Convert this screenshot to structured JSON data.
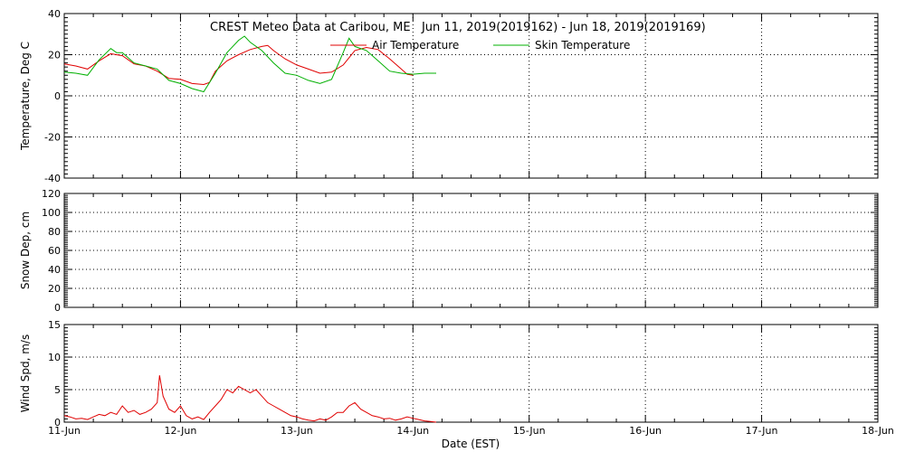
{
  "title": "CREST Meteo Data at Caribou, ME   Jun 11, 2019(2019162) - Jun 18, 2019(2019169)",
  "xlabel": "Date (EST)",
  "x_ticks": [
    "11-Jun",
    "12-Jun",
    "13-Jun",
    "14-Jun",
    "15-Jun",
    "16-Jun",
    "17-Jun",
    "18-Jun"
  ],
  "colors": {
    "air": "#e00000",
    "skin": "#00b000",
    "wind": "#e00000",
    "axis": "#000000"
  },
  "chart_data": [
    {
      "type": "line",
      "ylabel": "Temperature, Deg C",
      "xlim": [
        0,
        7
      ],
      "ylim": [
        -40,
        40
      ],
      "yticks": [
        -40,
        -20,
        0,
        20,
        40
      ],
      "x_unit": "days since 11-Jun 00:00",
      "legend": "top-center",
      "grid": true,
      "series": [
        {
          "name": "Air Temperature",
          "color": "#e00000",
          "x": [
            0.0,
            0.1,
            0.2,
            0.3,
            0.4,
            0.5,
            0.6,
            0.7,
            0.8,
            0.9,
            1.0,
            1.1,
            1.2,
            1.25,
            1.3,
            1.4,
            1.5,
            1.6,
            1.7,
            1.75,
            1.8,
            1.9,
            2.0,
            2.1,
            2.2,
            2.3,
            2.4,
            2.5,
            2.6,
            2.7,
            2.8,
            2.9,
            2.95,
            3.0
          ],
          "y": [
            15.5,
            14.5,
            13,
            17,
            20.5,
            19.5,
            15.5,
            14.5,
            12,
            8.5,
            8,
            6,
            5.5,
            6.5,
            12,
            17,
            20,
            22.5,
            24,
            24.5,
            22,
            18,
            15,
            13,
            11,
            11.5,
            15,
            22,
            23.5,
            22.5,
            18,
            13,
            10.5,
            10
          ]
        },
        {
          "name": "Skin Temperature",
          "color": "#00b000",
          "x": [
            0.0,
            0.1,
            0.2,
            0.3,
            0.4,
            0.45,
            0.5,
            0.6,
            0.7,
            0.8,
            0.9,
            1.0,
            1.1,
            1.2,
            1.3,
            1.4,
            1.5,
            1.55,
            1.6,
            1.7,
            1.8,
            1.9,
            2.0,
            2.1,
            2.2,
            2.3,
            2.4,
            2.45,
            2.5,
            2.6,
            2.7,
            2.8,
            2.9,
            3.0,
            3.1,
            3.2
          ],
          "y": [
            11.5,
            11,
            10,
            17.5,
            23,
            21,
            21,
            16,
            14.5,
            13,
            7.5,
            6,
            3.5,
            2,
            11,
            21,
            27,
            29,
            26,
            22,
            16,
            11,
            10,
            7.5,
            6,
            8,
            21,
            28,
            24,
            22,
            17,
            12,
            11,
            10.5,
            11,
            11
          ]
        }
      ]
    },
    {
      "type": "line",
      "ylabel": "Snow Dep, cm",
      "xlim": [
        0,
        7
      ],
      "ylim": [
        0,
        120
      ],
      "yticks": [
        0,
        20,
        40,
        60,
        80,
        100,
        120
      ],
      "grid": true,
      "series": []
    },
    {
      "type": "line",
      "ylabel": "Wind Spd, m/s",
      "xlim": [
        0,
        7
      ],
      "ylim": [
        0,
        15
      ],
      "yticks": [
        0,
        5,
        10,
        15
      ],
      "grid": true,
      "series": [
        {
          "name": "Wind Speed",
          "color": "#e00000",
          "x": [
            0.0,
            0.05,
            0.1,
            0.15,
            0.2,
            0.25,
            0.3,
            0.35,
            0.4,
            0.45,
            0.5,
            0.55,
            0.6,
            0.65,
            0.7,
            0.75,
            0.8,
            0.82,
            0.85,
            0.9,
            0.95,
            1.0,
            1.05,
            1.1,
            1.15,
            1.2,
            1.25,
            1.3,
            1.35,
            1.4,
            1.45,
            1.5,
            1.55,
            1.6,
            1.65,
            1.7,
            1.75,
            1.8,
            1.85,
            1.9,
            1.95,
            2.0,
            2.05,
            2.1,
            2.15,
            2.2,
            2.25,
            2.3,
            2.35,
            2.4,
            2.45,
            2.5,
            2.55,
            2.6,
            2.65,
            2.7,
            2.75,
            2.8,
            2.85,
            2.9,
            2.95,
            3.0,
            3.05,
            3.1,
            3.15,
            3.2
          ],
          "y": [
            1,
            0.8,
            0.5,
            0.6,
            0.4,
            0.8,
            1.2,
            1.0,
            1.5,
            1.2,
            2.5,
            1.5,
            1.8,
            1.2,
            1.5,
            2.0,
            3.0,
            7.2,
            4.0,
            2.0,
            1.5,
            2.5,
            1.0,
            0.5,
            0.8,
            0.4,
            1.5,
            2.5,
            3.5,
            5.0,
            4.5,
            5.5,
            5.0,
            4.5,
            5.0,
            4.0,
            3.0,
            2.5,
            2.0,
            1.5,
            1.0,
            0.8,
            0.5,
            0.3,
            0.2,
            0.5,
            0.3,
            0.8,
            1.5,
            1.5,
            2.5,
            3.0,
            2.0,
            1.5,
            1.0,
            0.8,
            0.5,
            0.6,
            0.3,
            0.5,
            0.8,
            0.6,
            0.4,
            0.2,
            0.1,
            0.0
          ]
        }
      ]
    }
  ]
}
